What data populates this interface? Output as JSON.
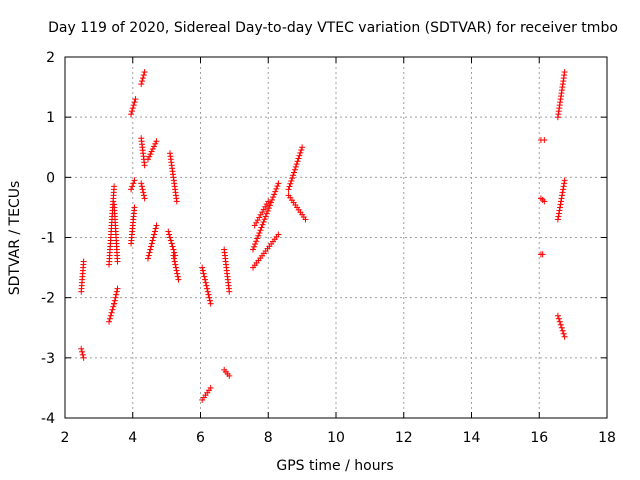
{
  "chart_data": {
    "type": "scatter",
    "title": "Day 119 of 2020, Sidereal Day-to-day VTEC variation (SDTVAR) for receiver tmbo",
    "xlabel": "GPS time / hours",
    "ylabel": "SDTVAR / TECUs",
    "xlim": [
      2,
      18
    ],
    "ylim": [
      -4,
      2
    ],
    "xticks": [
      2,
      4,
      6,
      8,
      10,
      12,
      14,
      16,
      18
    ],
    "yticks": [
      -4,
      -3,
      -2,
      -1,
      0,
      1,
      2
    ],
    "xtick_labels": [
      "2",
      "4",
      "6",
      "8",
      "10",
      "12",
      "14",
      "16",
      "18"
    ],
    "ytick_labels": [
      "-4",
      "-3",
      "-2",
      "-1",
      "0",
      "1",
      "2"
    ],
    "grid": true,
    "marker": "+",
    "color": "#ff0000",
    "segments": [
      {
        "x": [
          2.48,
          2.55
        ],
        "y": [
          -1.9,
          -1.4
        ]
      },
      {
        "x": [
          2.48,
          2.55
        ],
        "y": [
          -2.85,
          -3.0
        ]
      },
      {
        "x": [
          3.3,
          3.45
        ],
        "y": [
          -2.4,
          -2.1
        ]
      },
      {
        "x": [
          3.45,
          3.55
        ],
        "y": [
          -2.1,
          -1.85
        ]
      },
      {
        "x": [
          3.3,
          3.45
        ],
        "y": [
          -1.45,
          -0.15
        ]
      },
      {
        "x": [
          3.45,
          3.55
        ],
        "y": [
          -0.45,
          -1.4
        ]
      },
      {
        "x": [
          3.95,
          4.05
        ],
        "y": [
          -1.1,
          -0.5
        ]
      },
      {
        "x": [
          3.95,
          4.05
        ],
        "y": [
          -0.2,
          -0.05
        ]
      },
      {
        "x": [
          3.95,
          4.08
        ],
        "y": [
          1.05,
          1.3
        ]
      },
      {
        "x": [
          4.25,
          4.35
        ],
        "y": [
          1.55,
          1.75
        ]
      },
      {
        "x": [
          4.25,
          4.35
        ],
        "y": [
          0.65,
          0.2
        ]
      },
      {
        "x": [
          4.25,
          4.35
        ],
        "y": [
          -0.1,
          -0.35
        ]
      },
      {
        "x": [
          4.45,
          4.7
        ],
        "y": [
          -1.35,
          -0.8
        ]
      },
      {
        "x": [
          4.45,
          4.7
        ],
        "y": [
          0.3,
          0.6
        ]
      },
      {
        "x": [
          5.05,
          5.25
        ],
        "y": [
          -0.9,
          -1.3
        ]
      },
      {
        "x": [
          5.1,
          5.3
        ],
        "y": [
          0.4,
          -0.4
        ]
      },
      {
        "x": [
          5.2,
          5.35
        ],
        "y": [
          -1.3,
          -1.7
        ]
      },
      {
        "x": [
          6.05,
          6.3
        ],
        "y": [
          -1.5,
          -2.1
        ]
      },
      {
        "x": [
          6.05,
          6.3
        ],
        "y": [
          -3.7,
          -3.5
        ]
      },
      {
        "x": [
          6.7,
          6.85
        ],
        "y": [
          -1.2,
          -1.9
        ]
      },
      {
        "x": [
          6.7,
          6.85
        ],
        "y": [
          -3.2,
          -3.3
        ]
      },
      {
        "x": [
          7.55,
          8.3
        ],
        "y": [
          -1.2,
          -0.1
        ]
      },
      {
        "x": [
          7.55,
          8.3
        ],
        "y": [
          -1.5,
          -0.95
        ]
      },
      {
        "x": [
          7.6,
          8.0
        ],
        "y": [
          -0.8,
          -0.4
        ]
      },
      {
        "x": [
          8.6,
          9.0
        ],
        "y": [
          -0.2,
          0.5
        ]
      },
      {
        "x": [
          8.6,
          9.1
        ],
        "y": [
          -0.3,
          -0.7
        ]
      },
      {
        "x": [
          16.05,
          16.15
        ],
        "y": [
          0.62,
          0.62
        ]
      },
      {
        "x": [
          16.05,
          16.15
        ],
        "y": [
          -0.35,
          -0.4
        ]
      },
      {
        "x": [
          16.05,
          16.1
        ],
        "y": [
          -1.28,
          -1.28
        ]
      },
      {
        "x": [
          16.55,
          16.75
        ],
        "y": [
          1.0,
          1.75
        ]
      },
      {
        "x": [
          16.55,
          16.75
        ],
        "y": [
          -0.7,
          -0.05
        ]
      },
      {
        "x": [
          16.55,
          16.75
        ],
        "y": [
          -2.3,
          -2.65
        ]
      }
    ]
  }
}
